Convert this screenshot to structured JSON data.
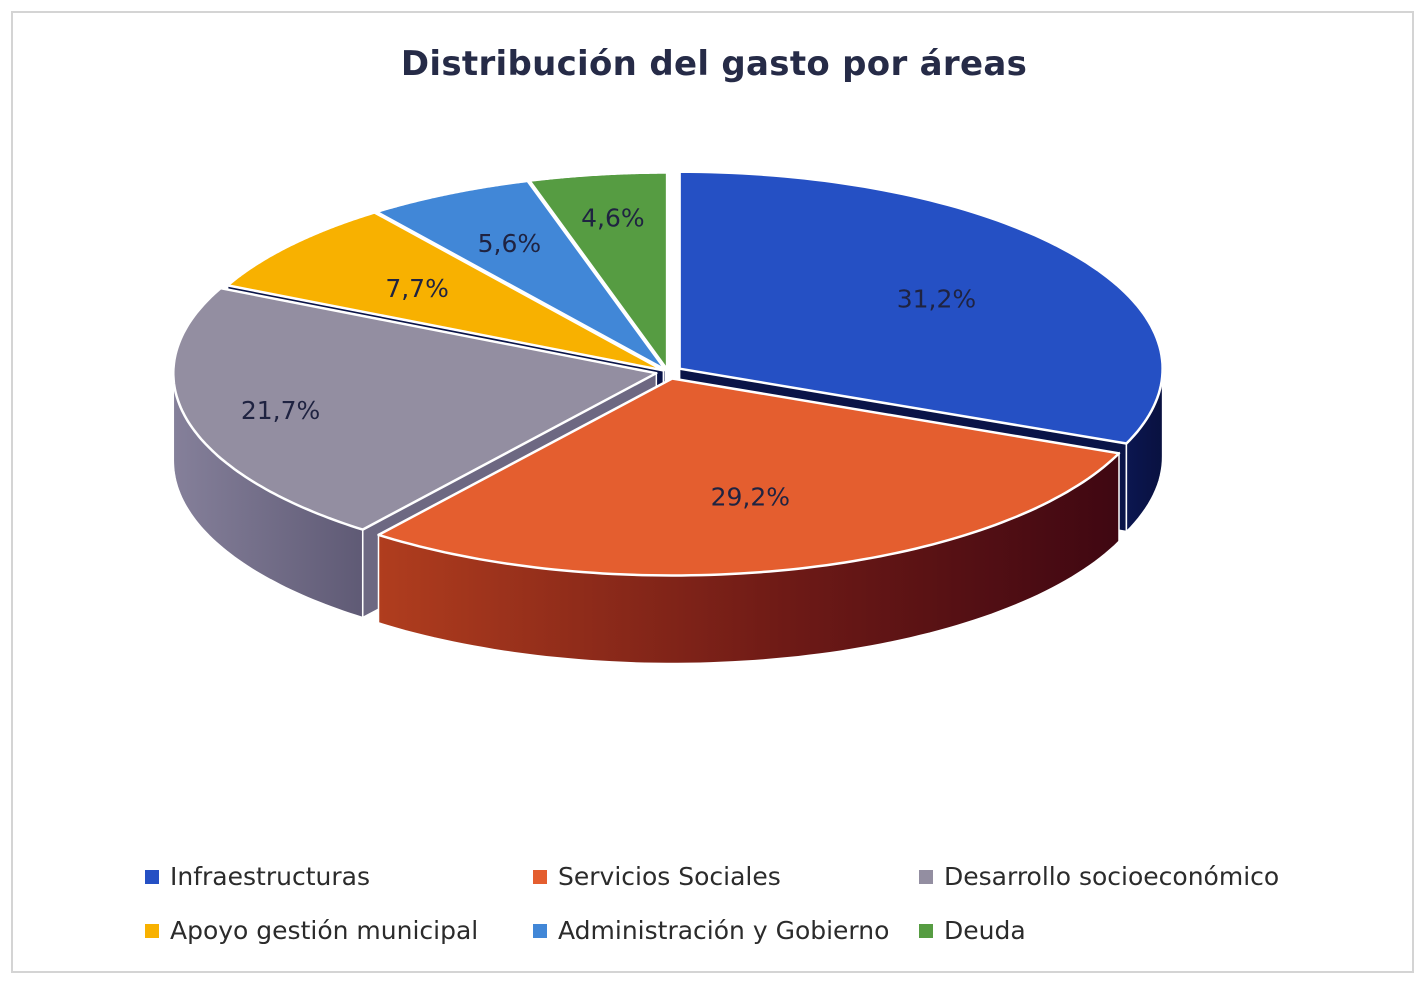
{
  "colors": {
    "Infraestructuras": "#2550c4",
    "Servicios Sociales": "#e45e2f",
    "Desarrollo socioeconómico": "#938ea1",
    "Apoyo gestión municipal": "#f8b100",
    "Administración y Gobierno": "#4187d7",
    "Deuda": "#569c42",
    "label_text": "#1f2341"
  },
  "chart_data": {
    "type": "pie",
    "title": "Distribución del gasto por áreas",
    "legend_position": "bottom",
    "categories": [
      "Infraestructuras",
      "Servicios Sociales",
      "Desarrollo socioeconómico",
      "Apoyo gestión municipal",
      "Administración y Gobierno",
      "Deuda"
    ],
    "values": [
      31.2,
      29.2,
      21.7,
      7.7,
      5.6,
      4.6
    ],
    "data_labels": [
      "31,2%",
      "29,2%",
      "21,7%",
      "7,7%",
      "5,6%",
      "4,6%"
    ]
  }
}
